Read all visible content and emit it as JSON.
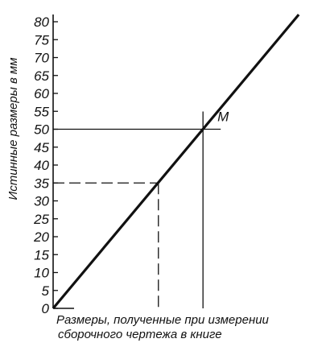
{
  "chart_data": {
    "type": "line",
    "ylabel": "Истинные размеры в мм",
    "xlabel_lines": [
      "Размеры, полученные при измерении",
      "сборочного чертежа в книге"
    ],
    "ylim": [
      0,
      80
    ],
    "yticks": [
      0,
      5,
      10,
      15,
      20,
      25,
      30,
      35,
      40,
      45,
      50,
      55,
      60,
      65,
      70,
      75,
      80
    ],
    "xlim": [
      0,
      37
    ],
    "grid": false,
    "series": [
      {
        "x": [
          0,
          33.6
        ],
        "y": [
          0,
          82
        ]
      }
    ],
    "annotations": [
      {
        "label": "M",
        "x": 20.5,
        "y": 50,
        "style": "solid"
      },
      {
        "label": "",
        "x": 14.4,
        "y": 35,
        "style": "dashed"
      }
    ]
  }
}
